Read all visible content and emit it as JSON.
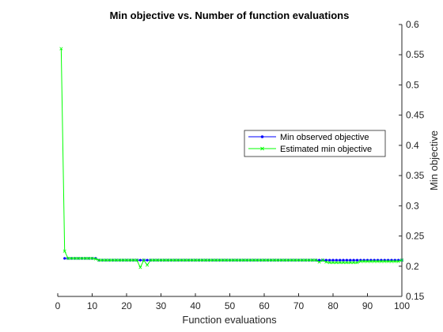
{
  "chart_data": {
    "type": "line",
    "title": "Min objective vs. Number of function evaluations",
    "xlabel": "Function evaluations",
    "ylabel": "Min objective",
    "xlim": [
      0,
      100
    ],
    "ylim": [
      0.15,
      0.6
    ],
    "y_axis_location": "right",
    "grid": false,
    "legend_location": "right",
    "x_ticks": [
      0,
      10,
      20,
      30,
      40,
      50,
      60,
      70,
      80,
      90,
      100
    ],
    "y_ticks": [
      0.15,
      0.2,
      0.25,
      0.3,
      0.35,
      0.4,
      0.45,
      0.5,
      0.55,
      0.6
    ],
    "x": [
      1,
      2,
      3,
      4,
      5,
      6,
      7,
      8,
      9,
      10,
      11,
      12,
      13,
      14,
      15,
      16,
      17,
      18,
      19,
      20,
      21,
      22,
      23,
      24,
      25,
      26,
      27,
      28,
      29,
      30,
      31,
      32,
      33,
      34,
      35,
      36,
      37,
      38,
      39,
      40,
      41,
      42,
      43,
      44,
      45,
      46,
      47,
      48,
      49,
      50,
      51,
      52,
      53,
      54,
      55,
      56,
      57,
      58,
      59,
      60,
      61,
      62,
      63,
      64,
      65,
      66,
      67,
      68,
      69,
      70,
      71,
      72,
      73,
      74,
      75,
      76,
      77,
      78,
      79,
      80,
      81,
      82,
      83,
      84,
      85,
      86,
      87,
      88,
      89,
      90,
      91,
      92,
      93,
      94,
      95,
      96,
      97,
      98,
      99,
      100
    ],
    "series": [
      {
        "name": "Min observed objective",
        "color": "#0000ff",
        "marker": "dot",
        "values": [
          null,
          0.213,
          0.213,
          0.213,
          0.213,
          0.213,
          0.213,
          0.213,
          0.213,
          0.213,
          0.213,
          0.21,
          0.21,
          0.21,
          0.21,
          0.21,
          0.21,
          0.21,
          0.21,
          0.21,
          0.21,
          0.21,
          0.21,
          0.21,
          0.21,
          0.21,
          0.21,
          0.21,
          0.21,
          0.21,
          0.21,
          0.21,
          0.21,
          0.21,
          0.21,
          0.21,
          0.21,
          0.21,
          0.21,
          0.21,
          0.21,
          0.21,
          0.21,
          0.21,
          0.21,
          0.21,
          0.21,
          0.21,
          0.21,
          0.21,
          0.21,
          0.21,
          0.21,
          0.21,
          0.21,
          0.21,
          0.21,
          0.21,
          0.21,
          0.21,
          0.21,
          0.21,
          0.21,
          0.21,
          0.21,
          0.21,
          0.21,
          0.21,
          0.21,
          0.21,
          0.21,
          0.21,
          0.21,
          0.21,
          0.21,
          0.21,
          0.21,
          0.21,
          0.21,
          0.21,
          0.21,
          0.21,
          0.21,
          0.21,
          0.21,
          0.21,
          0.21,
          0.21,
          0.21,
          0.21,
          0.21,
          0.21,
          0.21,
          0.21,
          0.21,
          0.21,
          0.21,
          0.21,
          0.21,
          0.21
        ]
      },
      {
        "name": "Estimated min objective",
        "color": "#00ff00",
        "marker": "x",
        "values": [
          0.56,
          0.225,
          0.213,
          0.213,
          0.213,
          0.213,
          0.213,
          0.213,
          0.213,
          0.213,
          0.212,
          0.21,
          0.21,
          0.21,
          0.21,
          0.21,
          0.21,
          0.21,
          0.21,
          0.21,
          0.21,
          0.21,
          0.21,
          0.198,
          0.21,
          0.202,
          0.21,
          0.21,
          0.21,
          0.21,
          0.21,
          0.21,
          0.21,
          0.21,
          0.21,
          0.21,
          0.21,
          0.21,
          0.21,
          0.21,
          0.21,
          0.21,
          0.21,
          0.21,
          0.21,
          0.21,
          0.21,
          0.21,
          0.21,
          0.21,
          0.21,
          0.21,
          0.21,
          0.21,
          0.21,
          0.21,
          0.21,
          0.21,
          0.21,
          0.21,
          0.21,
          0.21,
          0.21,
          0.21,
          0.21,
          0.21,
          0.21,
          0.21,
          0.21,
          0.21,
          0.21,
          0.21,
          0.21,
          0.21,
          0.21,
          0.207,
          0.21,
          0.207,
          0.206,
          0.206,
          0.206,
          0.206,
          0.206,
          0.206,
          0.206,
          0.206,
          0.206,
          0.208,
          0.208,
          0.208,
          0.208,
          0.208,
          0.208,
          0.208,
          0.208,
          0.208,
          0.208,
          0.208,
          0.208,
          0.21
        ]
      }
    ]
  }
}
